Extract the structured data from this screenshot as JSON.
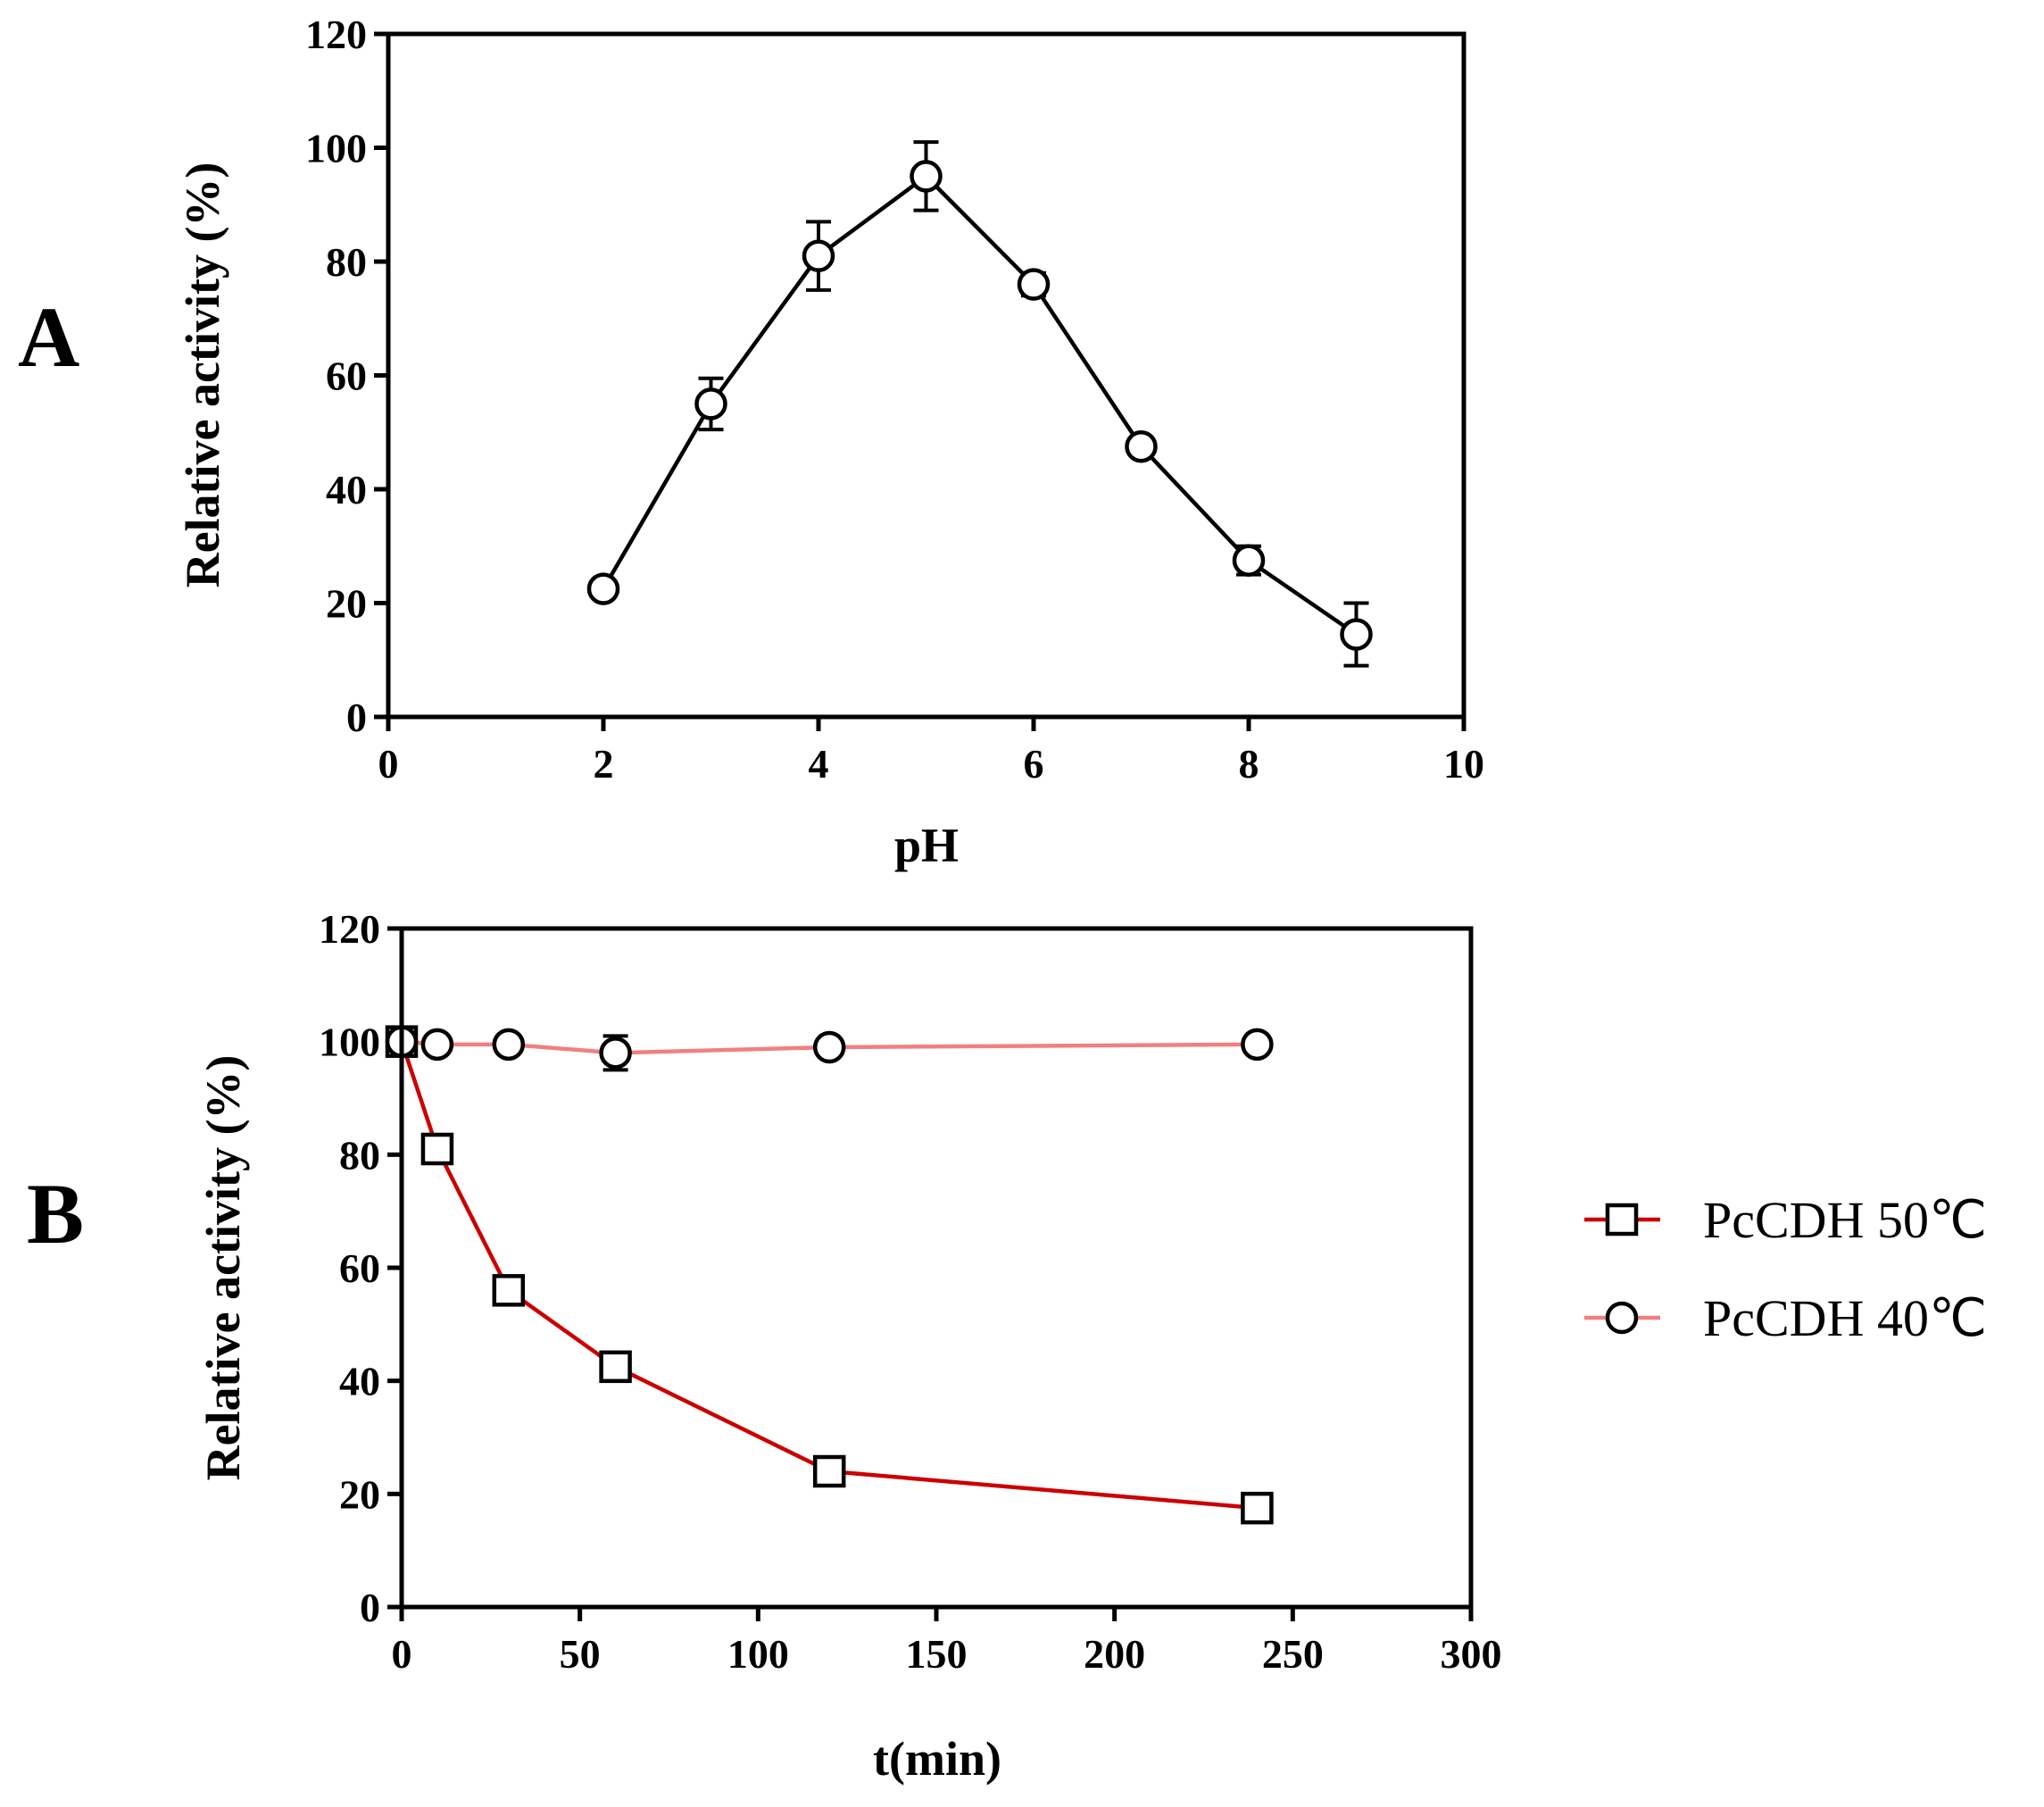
{
  "chart_data": [
    {
      "panel_label": "A",
      "type": "line",
      "xlabel": "pH",
      "ylabel": "Relative activity (%)",
      "xlim": [
        0,
        10
      ],
      "ylim": [
        0,
        120
      ],
      "xticks": [
        "0",
        "2",
        "4",
        "6",
        "8",
        "10"
      ],
      "yticks": [
        "0",
        "20",
        "40",
        "60",
        "80",
        "100",
        "120"
      ],
      "grid": false,
      "series": [
        {
          "marker": "circle",
          "color": "#000000",
          "x": [
            2,
            3,
            4,
            5,
            6,
            7,
            8,
            9
          ],
          "y": [
            22.5,
            55,
            81,
            95,
            76,
            47.5,
            27.5,
            14.5
          ],
          "yerr": [
            1.5,
            4.5,
            6,
            6,
            2,
            1.5,
            2.5,
            5.5
          ]
        }
      ]
    },
    {
      "panel_label": "B",
      "type": "line",
      "xlabel": "t(min)",
      "ylabel": "Relative activity (%)",
      "xlim": [
        0,
        300
      ],
      "ylim": [
        0,
        120
      ],
      "xticks": [
        "0",
        "50",
        "100",
        "150",
        "200",
        "250",
        "300"
      ],
      "yticks": [
        "0",
        "20",
        "40",
        "60",
        "80",
        "100",
        "120"
      ],
      "grid": false,
      "legend_position": "right",
      "series": [
        {
          "name": "PcCDH 50℃",
          "marker": "square",
          "color": "#cc0000",
          "x": [
            0,
            10,
            30,
            60,
            120,
            240
          ],
          "y": [
            100,
            81,
            56,
            42.5,
            24,
            17.5
          ],
          "yerr": [
            0,
            0,
            0,
            0,
            0,
            0
          ]
        },
        {
          "name": "PcCDH 40℃",
          "marker": "circle",
          "color": "#f08080",
          "x": [
            0,
            10,
            30,
            60,
            120,
            240
          ],
          "y": [
            100,
            99.5,
            99.5,
            98,
            99,
            99.5
          ],
          "yerr": [
            0,
            0,
            0,
            3,
            0,
            0
          ]
        }
      ]
    }
  ]
}
